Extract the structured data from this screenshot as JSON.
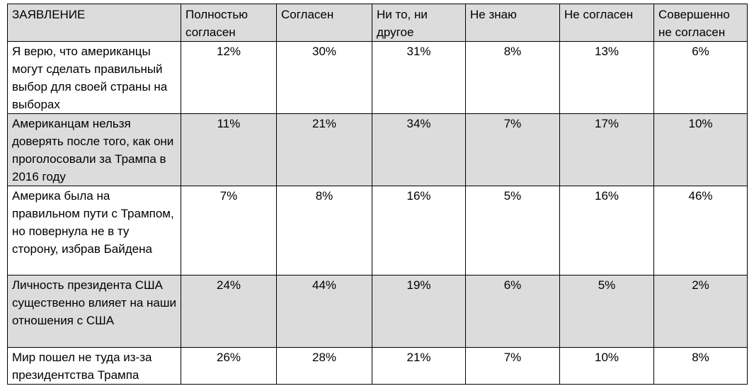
{
  "table": {
    "header": {
      "statement": "ЗАЯВЛЕНИЕ",
      "columns": [
        "Полностью согласен",
        "Согласен",
        "Ни то, ни другое",
        "Не знаю",
        "Не согласен",
        "Совершенно не согласен"
      ]
    },
    "rows": [
      {
        "statement": "Я верю, что американцы могут сделать правильный выбор для своей страны на выборах",
        "values": [
          "12%",
          "30%",
          "31%",
          "8%",
          "13%",
          "6%"
        ]
      },
      {
        "statement": "Американцам нельзя доверять после того, как они проголосовали за Трампа в 2016 году",
        "values": [
          "11%",
          "21%",
          "34%",
          "7%",
          "17%",
          "10%"
        ]
      },
      {
        "statement": "Америка была на правильном пути с Трампом, но повернула не в ту сторону, избрав Байдена",
        "values": [
          "7%",
          "8%",
          "16%",
          "5%",
          "16%",
          "46%"
        ]
      },
      {
        "statement": "Личность президента США существенно влияет на наши отношения с США",
        "values": [
          "24%",
          "44%",
          "19%",
          "6%",
          "5%",
          "2%"
        ]
      },
      {
        "statement": "Мир пошел не туда из-за президентства Трампа",
        "values": [
          "26%",
          "28%",
          "21%",
          "7%",
          "10%",
          "8%"
        ]
      }
    ],
    "colors": {
      "shaded_row": "#dcdcdc",
      "plain_row": "#ffffff",
      "border": "#000000"
    }
  }
}
